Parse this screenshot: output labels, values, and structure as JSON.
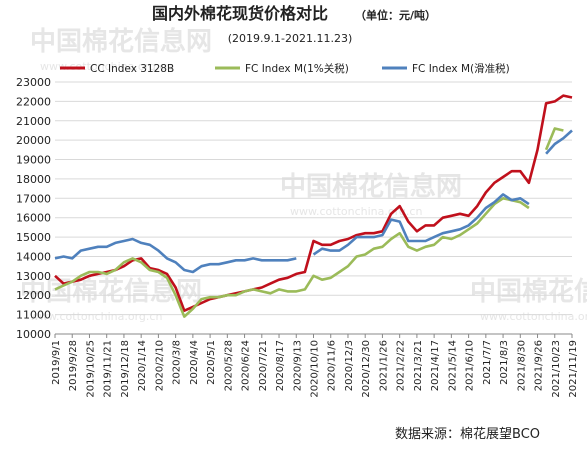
{
  "chart_data": {
    "type": "line",
    "title": "国内外棉花现货价格对比",
    "unit_note": "（单位：元/吨）",
    "subtitle": "(2019.9.1-2021.11.23)",
    "source": "数据来源：棉花展望BCO",
    "watermark": [
      "中国棉花信息网",
      "www.cottonchina.org.cn"
    ],
    "categories": [
      "2019/9/1",
      null,
      "2019/9/28",
      null,
      "2019/10/25",
      null,
      "2019/11/21",
      null,
      "2019/12/18",
      null,
      "2020/1/14",
      null,
      "2020/2/10",
      null,
      "2020/3/8",
      null,
      "2020/4/4",
      null,
      "2020/5/1",
      null,
      "2020/5/28",
      null,
      "2020/6/24",
      null,
      "2020/7/21",
      null,
      "2020/8/17",
      null,
      "2020/9/13",
      null,
      "2020/10/10",
      null,
      "2020/11/6",
      null,
      "2020/12/3",
      null,
      "2020/12/30",
      null,
      "2021/1/26",
      null,
      "2021/2/22",
      null,
      "2021/3/21",
      null,
      "2021/4/17",
      null,
      "2021/5/14",
      null,
      "2021/6/10",
      null,
      "2021/7/7",
      null,
      "2021/8/3",
      null,
      "2021/8/30",
      null,
      "2021/9/26",
      null,
      "2021/10/23",
      null,
      "2021/11/19"
    ],
    "series": [
      {
        "name": "CC Index 3128B",
        "color": "#c0101c",
        "values": [
          13000,
          12600,
          12700,
          12800,
          13000,
          13100,
          13200,
          13300,
          13500,
          13800,
          13900,
          13400,
          13300,
          13100,
          12400,
          11200,
          11400,
          11600,
          11800,
          11900,
          12000,
          12100,
          12200,
          12300,
          12400,
          12600,
          12800,
          12900,
          13100,
          13200,
          14800,
          14600,
          14600,
          14800,
          14900,
          15100,
          15200,
          15200,
          15300,
          16200,
          16600,
          15800,
          15300,
          15600,
          15600,
          16000,
          16100,
          16200,
          16100,
          16600,
          17300,
          17800,
          18100,
          18400,
          18400,
          17800,
          19500,
          21900,
          22000,
          22300,
          22200
        ]
      },
      {
        "name": "FC Index M(1%关税)",
        "color": "#9bbb59",
        "values": [
          12300,
          12500,
          12700,
          13000,
          13200,
          13200,
          13100,
          13300,
          13700,
          13900,
          13700,
          13300,
          13200,
          12900,
          12000,
          10900,
          11300,
          11800,
          11900,
          11900,
          12000,
          12000,
          12200,
          12300,
          12200,
          12100,
          12300,
          12200,
          12200,
          12300,
          13000,
          12800,
          12900,
          13200,
          13500,
          14000,
          14100,
          14400,
          14500,
          14900,
          15200,
          14500,
          14300,
          14500,
          14600,
          15000,
          14900,
          15100,
          15400,
          15700,
          16200,
          16700,
          17000,
          16900,
          16800,
          16500,
          null,
          19500,
          20600,
          20500,
          null
        ]
      },
      {
        "name": "FC Index M(滑准税)",
        "color": "#4f81bd",
        "values": [
          13900,
          14000,
          13900,
          14300,
          14400,
          14500,
          14500,
          14700,
          14800,
          14900,
          14700,
          14600,
          14300,
          13900,
          13700,
          13300,
          13200,
          13500,
          13600,
          13600,
          13700,
          13800,
          13800,
          13900,
          13800,
          13800,
          13800,
          13800,
          13900,
          null,
          14100,
          14400,
          14300,
          14300,
          14600,
          15000,
          15000,
          15000,
          15100,
          15900,
          15800,
          14800,
          14800,
          14800,
          15000,
          15200,
          15300,
          15400,
          15600,
          16000,
          16500,
          16800,
          17200,
          16900,
          17000,
          16700,
          null,
          19300,
          19800,
          20100,
          20500
        ]
      }
    ],
    "ylim": [
      10000,
      23000
    ],
    "yticks": [
      10000,
      11000,
      12000,
      13000,
      14000,
      15000,
      16000,
      17000,
      18000,
      19000,
      20000,
      21000,
      22000,
      23000
    ],
    "grid": true
  }
}
